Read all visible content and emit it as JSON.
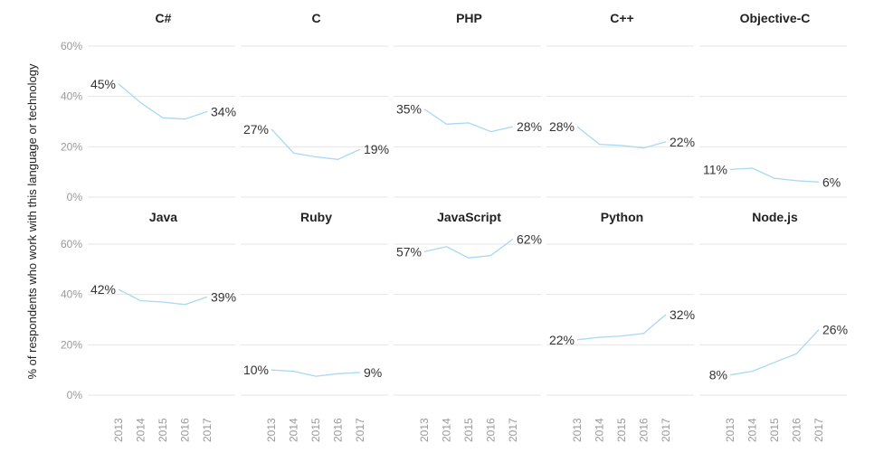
{
  "chart_data": {
    "type": "line",
    "ylabel": "% of respondents who work with this language or technology",
    "x": [
      2013,
      2014,
      2015,
      2016,
      2017
    ],
    "x_tick_labels": [
      "2013",
      "2014",
      "2015",
      "2016",
      "2017"
    ],
    "ylim": [
      0,
      60
    ],
    "y_ticks": [
      0,
      20,
      40,
      60
    ],
    "y_tick_labels": [
      "0%",
      "20%",
      "40%",
      "60%"
    ],
    "grid": true,
    "line_color": "#a8d8f2",
    "panels": [
      {
        "title": "C#",
        "values": [
          45,
          37.5,
          31.5,
          31,
          34
        ],
        "first_label": "45%",
        "last_label": "34%"
      },
      {
        "title": "C",
        "values": [
          27,
          17.5,
          16,
          15,
          19
        ],
        "first_label": "27%",
        "last_label": "19%"
      },
      {
        "title": "PHP",
        "values": [
          35,
          29,
          29.5,
          26,
          28
        ],
        "first_label": "35%",
        "last_label": "28%"
      },
      {
        "title": "C++",
        "values": [
          28,
          21,
          20.5,
          19.5,
          22
        ],
        "first_label": "28%",
        "last_label": "22%"
      },
      {
        "title": "Objective-C",
        "values": [
          11,
          11.5,
          7.5,
          6.5,
          6
        ],
        "first_label": "11%",
        "last_label": "6%"
      },
      {
        "title": "Java",
        "values": [
          42,
          37.5,
          37,
          36,
          39
        ],
        "first_label": "42%",
        "last_label": "39%"
      },
      {
        "title": "Ruby",
        "values": [
          10,
          9.5,
          7.5,
          8.5,
          9
        ],
        "first_label": "10%",
        "last_label": "9%"
      },
      {
        "title": "JavaScript",
        "values": [
          57,
          59,
          54.5,
          55.5,
          62
        ],
        "first_label": "57%",
        "last_label": "62%"
      },
      {
        "title": "Python",
        "values": [
          22,
          23,
          23.5,
          24.5,
          32
        ],
        "first_label": "22%",
        "last_label": "32%"
      },
      {
        "title": "Node.js",
        "values": [
          8,
          9.5,
          13,
          16.5,
          26
        ],
        "first_label": "8%",
        "last_label": "26%"
      }
    ]
  }
}
